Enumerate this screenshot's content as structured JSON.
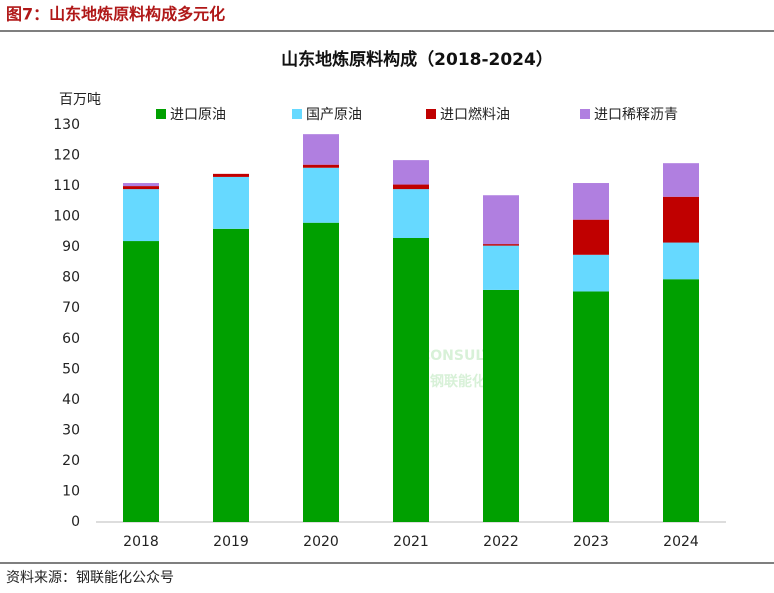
{
  "figure_title": "图7：山东地炼原料构成多元化",
  "source": "资料来源：钢联能化公众号",
  "watermark": [
    "CONSULTING",
    "钢联能化"
  ],
  "chart_data": {
    "type": "stacked-bar",
    "title": "山东地炼原料构成（2018-2024）",
    "y_label": "百万吨",
    "categories": [
      "2018",
      "2019",
      "2020",
      "2021",
      "2022",
      "2023",
      "2024"
    ],
    "series": [
      {
        "name": "进口原油",
        "color": "#00a000",
        "values": [
          92,
          96,
          98,
          93,
          76,
          75.5,
          79.5
        ]
      },
      {
        "name": "国产原油",
        "color": "#66d9ff",
        "values": [
          17,
          17,
          18,
          16,
          14.5,
          12,
          12
        ]
      },
      {
        "name": "进口燃料油",
        "color": "#c00000",
        "values": [
          1,
          1,
          1,
          1.5,
          0.5,
          11.5,
          15
        ]
      },
      {
        "name": "进口稀释沥青",
        "color": "#b07fe0",
        "values": [
          1,
          0,
          10,
          8,
          16,
          12,
          11
        ]
      }
    ],
    "ylim": [
      0,
      130
    ],
    "yticks": [
      0,
      10,
      20,
      30,
      40,
      50,
      60,
      70,
      80,
      90,
      100,
      110,
      120,
      130
    ],
    "grid": false,
    "legend": "top"
  }
}
